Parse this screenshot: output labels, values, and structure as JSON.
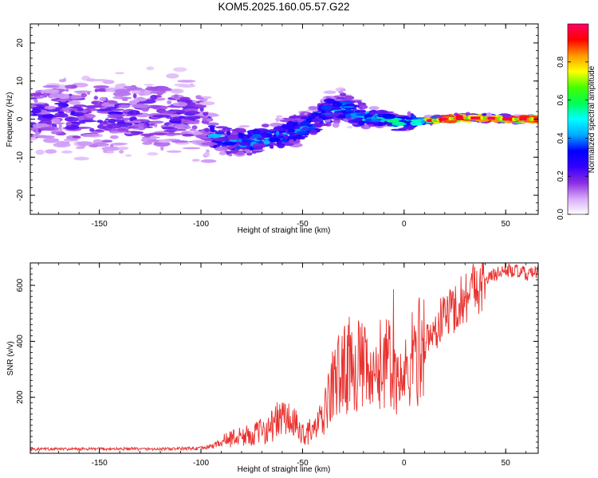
{
  "figure": {
    "title": "KOM5.2025.160.05.57.G22"
  },
  "chart_data": [
    {
      "type": "heatmap",
      "xlabel": "Height of straight line (km)",
      "ylabel": "Frequency (Hz)",
      "xlim": [
        -184,
        66
      ],
      "ylim": [
        -25,
        25
      ],
      "x_ticks": [
        -150,
        -100,
        -50,
        0,
        50
      ],
      "y_ticks": [
        -20,
        -10,
        0,
        10,
        20
      ],
      "colorbar": {
        "label": "Normalized spectral amplitude",
        "range": [
          0,
          1
        ],
        "ticks": [
          "0.0",
          "0.2",
          "0.4",
          "0.6",
          "0.8"
        ],
        "colors": [
          "#ffffff",
          "#d7a8f8",
          "#8a2be2",
          "#3300ff",
          "#0000ff",
          "#00aaff",
          "#00ffff",
          "#00ff55",
          "#44ff00",
          "#ffff00",
          "#ff9900",
          "#ff0000",
          "#ff0066"
        ]
      },
      "ridge": {
        "x": [
          -184,
          -150,
          -120,
          -100,
          -93,
          -85,
          -75,
          -65,
          -55,
          -45,
          -38,
          -30,
          -20,
          -10,
          -5,
          0,
          10,
          20,
          30,
          40,
          50,
          66
        ],
        "frequency": [
          2,
          1,
          1,
          0,
          -5,
          -6,
          -6,
          -5,
          -3,
          -1,
          2,
          3,
          0.5,
          0.5,
          -1,
          -1,
          -0.5,
          0,
          0.3,
          0.3,
          0,
          0
        ]
      }
    },
    {
      "type": "line",
      "xlabel": "Height of straight line (km)",
      "ylabel": "SNR (v/v)",
      "xlim": [
        -184,
        66
      ],
      "ylim": [
        0,
        680
      ],
      "x_ticks": [
        -150,
        -100,
        -50,
        0,
        50
      ],
      "y_ticks": [
        200,
        400,
        600
      ],
      "series": [
        {
          "color": "#e8312e",
          "x": [
            -184,
            -160,
            -140,
            -120,
            -100,
            -95,
            -90,
            -85,
            -80,
            -75,
            -70,
            -65,
            -60,
            -55,
            -50,
            -45,
            -40,
            -35,
            -30,
            -25,
            -20,
            -15,
            -10,
            -5,
            0,
            5,
            10,
            15,
            20,
            25,
            30,
            35,
            40,
            45,
            50,
            55,
            60,
            66
          ],
          "values": [
            15,
            15,
            16,
            15,
            18,
            25,
            40,
            55,
            60,
            65,
            80,
            100,
            130,
            110,
            70,
            80,
            120,
            250,
            300,
            330,
            300,
            240,
            350,
            280,
            260,
            350,
            390,
            430,
            500,
            520,
            560,
            600,
            620,
            640,
            655,
            650,
            640,
            645
          ]
        }
      ]
    }
  ]
}
